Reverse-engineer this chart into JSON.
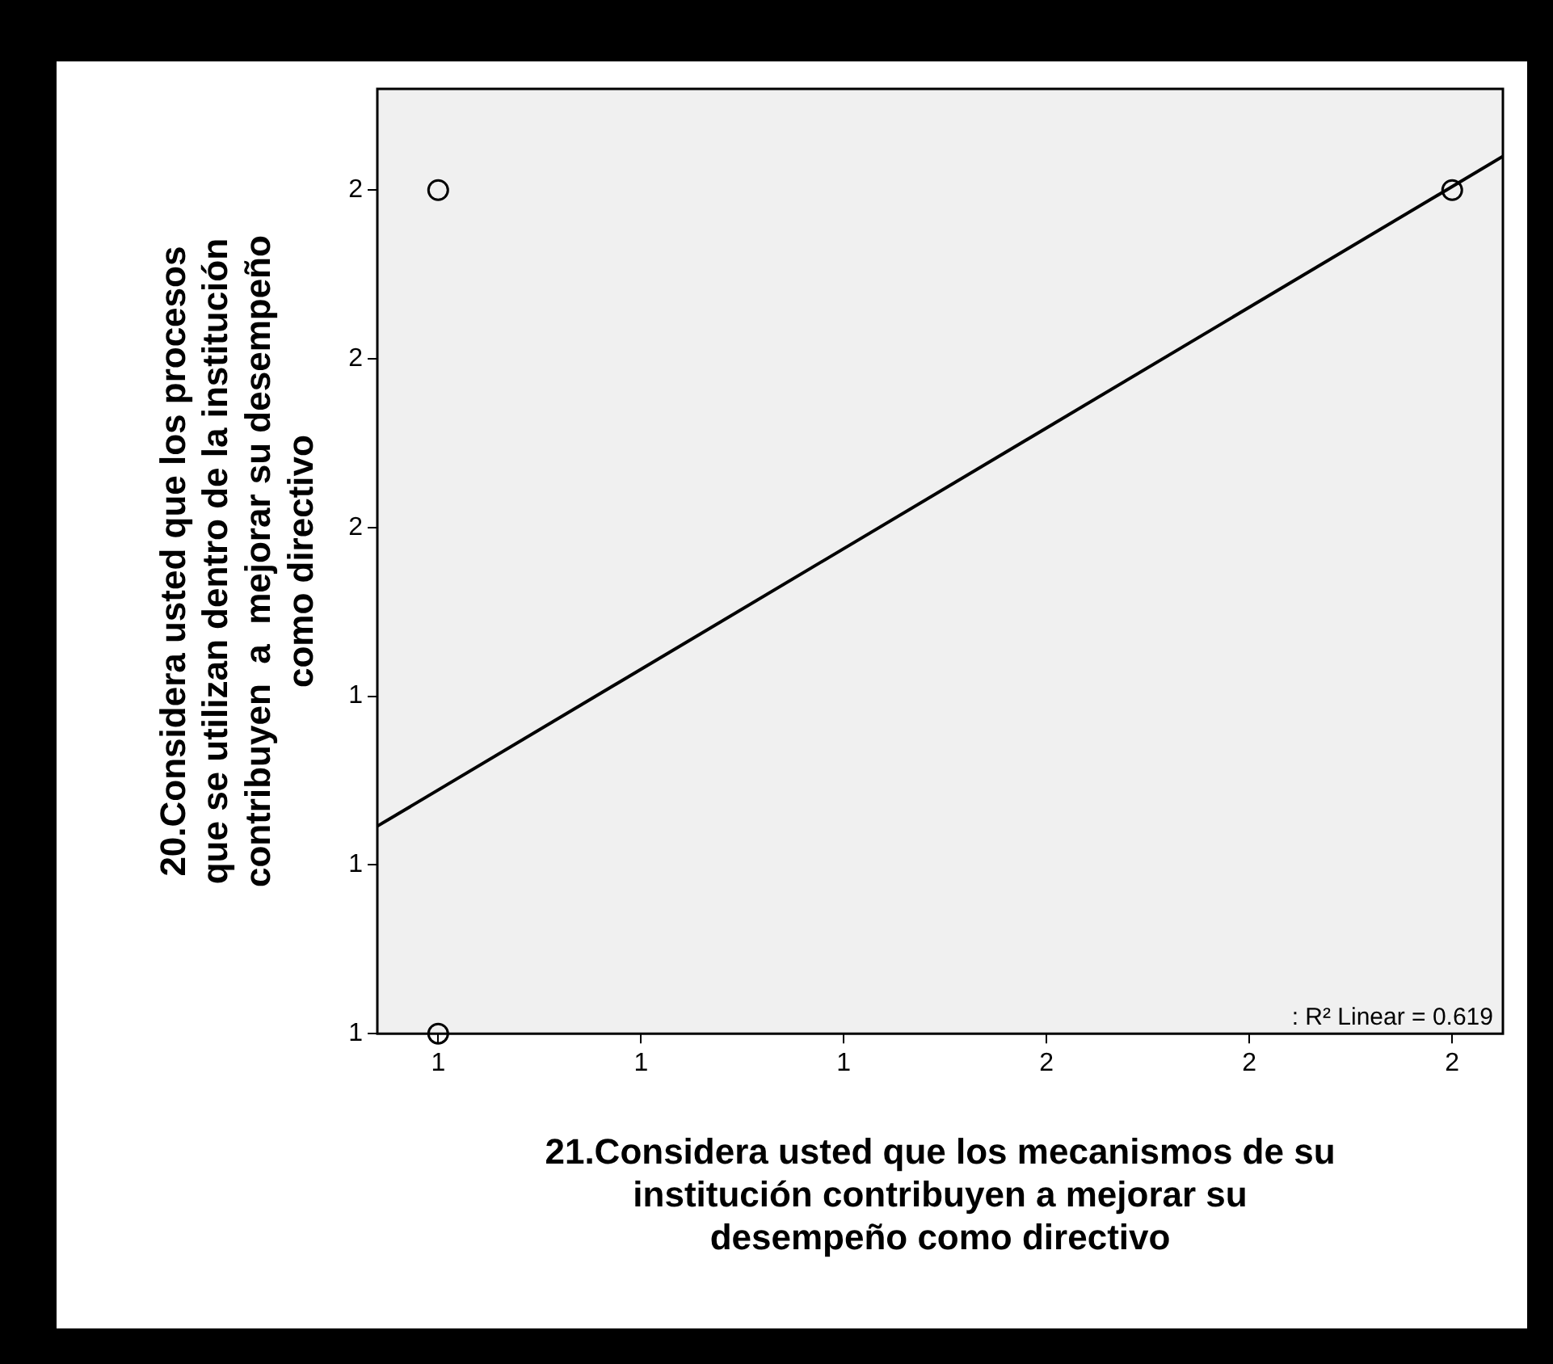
{
  "chart_data": {
    "type": "scatter",
    "xlabel": "21.Considera usted que los mecanismos de su\ninstitución contribuyen a mejorar su\ndesempeño como directivo",
    "ylabel": "20.Considera usted que los procesos\nque se utilizan dentro de la institución\ncontribuyen  a  mejorar su desempeño\ncomo directivo",
    "series": [
      {
        "color": "#000000",
        "marker": "circle",
        "x": [
          1,
          1,
          2
        ],
        "values": [
          1,
          2,
          2
        ]
      },
      {
        "type": "line",
        "color": "#000000",
        "marker": "none",
        "x": [
          0.94,
          2.05
        ],
        "values": [
          1.246,
          2.04
        ]
      }
    ],
    "xlim": [
      0.94,
      2.05
    ],
    "ylim": [
      1,
      2.12
    ],
    "xticks": [
      {
        "value": 1.0,
        "label": "1"
      },
      {
        "value": 1.2,
        "label": "1"
      },
      {
        "value": 1.4,
        "label": "1"
      },
      {
        "value": 1.6,
        "label": "2"
      },
      {
        "value": 1.8,
        "label": "2"
      },
      {
        "value": 2.0,
        "label": "2"
      }
    ],
    "yticks": [
      {
        "value": 1.0,
        "label": "1"
      },
      {
        "value": 1.2,
        "label": "1"
      },
      {
        "value": 1.4,
        "label": "1"
      },
      {
        "value": 1.6,
        "label": "2"
      },
      {
        "value": 1.8,
        "label": "2"
      },
      {
        "value": 2.0,
        "label": "2"
      }
    ],
    "annotations": [
      ": R² Linear = 0.619"
    ],
    "grid": false,
    "legend": false
  }
}
